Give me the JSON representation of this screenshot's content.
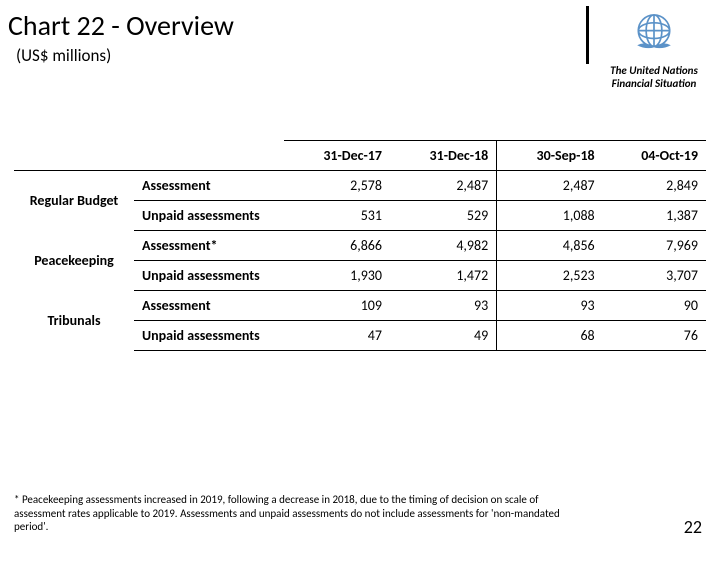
{
  "title": "Chart 22 - Overview",
  "subtitle": "(US$  millions)",
  "org_line1": "The United Nations",
  "org_line2": "Financial Situation",
  "columns": [
    "31-Dec-17",
    "31-Dec-18",
    "30-Sep-18",
    "04-Oct-19"
  ],
  "categories": [
    {
      "name": "Regular Budget",
      "rows": [
        {
          "label": "Assessment",
          "v": [
            "2,578",
            "2,487",
            "2,487",
            "2,849"
          ]
        },
        {
          "label": "Unpaid assessments",
          "v": [
            "531",
            "529",
            "1,088",
            "1,387"
          ]
        }
      ]
    },
    {
      "name": "Peacekeeping",
      "rows": [
        {
          "label": "Assessment*",
          "v": [
            "6,866",
            "4,982",
            "4,856",
            "7,969"
          ]
        },
        {
          "label": "Unpaid assessments",
          "v": [
            "1,930",
            "1,472",
            "2,523",
            "3,707"
          ]
        }
      ]
    },
    {
      "name": "Tribunals",
      "rows": [
        {
          "label": "Assessment",
          "v": [
            "109",
            "93",
            "93",
            "90"
          ]
        },
        {
          "label": "Unpaid assessments",
          "v": [
            "47",
            "49",
            "68",
            "76"
          ]
        }
      ]
    }
  ],
  "footnote": "* Peacekeeping assessments increased in 2019, following a decrease in 2018, due to the timing of decision on scale of assessment rates applicable to 2019. Assessments and unpaid assessments do not include assessments for 'non-mandated period'.",
  "page_number": "22",
  "colors": {
    "logo": "#5b92c8",
    "text": "#000000",
    "background": "#ffffff"
  },
  "fontsize": {
    "title": 28,
    "subtitle": 17,
    "table": 14,
    "footnote": 11,
    "org": 11,
    "pagenum": 18
  }
}
